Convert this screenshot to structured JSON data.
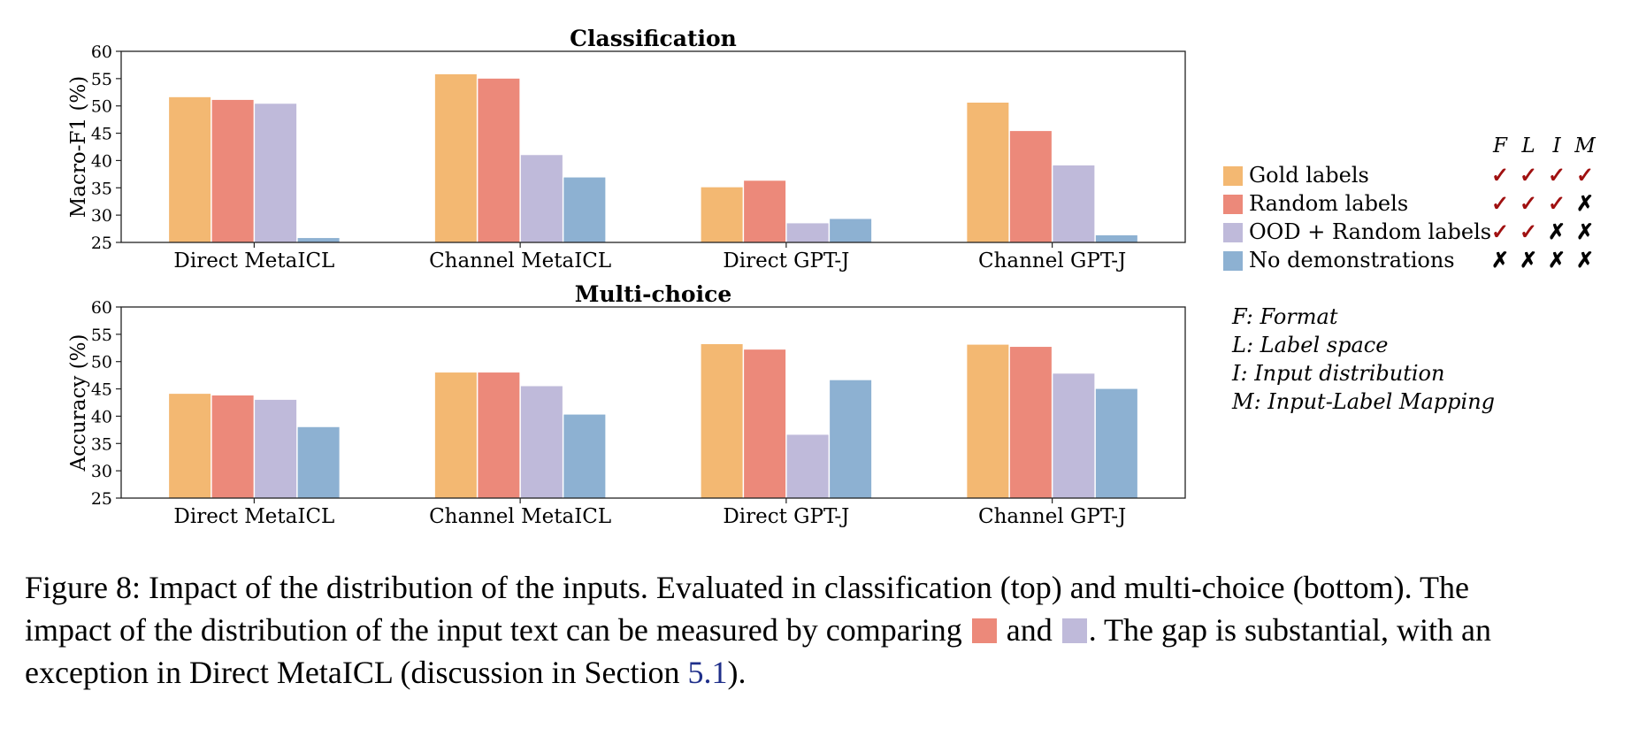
{
  "colors": {
    "gold": "#f3b872",
    "random": "#ec897a",
    "ood": "#bfbada",
    "none": "#8db1d2",
    "check": "#a01010",
    "link": "#1f2f8a"
  },
  "chart_data": [
    {
      "type": "bar",
      "title": "Classification",
      "ylabel": "Macro-F1 (%)",
      "ylim": [
        25,
        60
      ],
      "yticks": [
        "25",
        "30",
        "35",
        "40",
        "45",
        "50",
        "55",
        "60"
      ],
      "categories": [
        "Direct MetaICL",
        "Channel MetaICL",
        "Direct GPT-J",
        "Channel GPT-J"
      ],
      "series": [
        {
          "name": "Gold labels",
          "values": [
            51.6,
            55.8,
            35.1,
            50.6
          ]
        },
        {
          "name": "Random labels",
          "values": [
            51.1,
            55.0,
            36.3,
            45.4
          ]
        },
        {
          "name": "OOD + Random labels",
          "values": [
            50.4,
            41.0,
            28.5,
            39.1
          ]
        },
        {
          "name": "No demonstrations",
          "values": [
            25.8,
            36.9,
            29.3,
            26.3
          ]
        }
      ]
    },
    {
      "type": "bar",
      "title": "Multi-choice",
      "ylabel": "Accuracy (%)",
      "ylim": [
        25,
        60
      ],
      "yticks": [
        "25",
        "30",
        "35",
        "40",
        "45",
        "50",
        "55",
        "60"
      ],
      "categories": [
        "Direct MetaICL",
        "Channel MetaICL",
        "Direct GPT-J",
        "Channel GPT-J"
      ],
      "series": [
        {
          "name": "Gold labels",
          "values": [
            44.1,
            48.0,
            53.2,
            53.1
          ]
        },
        {
          "name": "Random labels",
          "values": [
            43.8,
            48.0,
            52.2,
            52.7
          ]
        },
        {
          "name": "OOD + Random labels",
          "values": [
            43.0,
            45.5,
            36.6,
            47.8
          ]
        },
        {
          "name": "No demonstrations",
          "values": [
            38.0,
            40.3,
            46.6,
            45.0
          ]
        }
      ]
    }
  ],
  "legend": {
    "flag_headers": [
      "F",
      "L",
      "I",
      "M"
    ],
    "items": [
      {
        "label": "Gold labels",
        "flags": [
          "✓",
          "✓",
          "✓",
          "✓"
        ]
      },
      {
        "label": "Random labels",
        "flags": [
          "✓",
          "✓",
          "✓",
          "✗"
        ]
      },
      {
        "label": "OOD + Random labels",
        "flags": [
          "✓",
          "✓",
          "✗",
          "✗"
        ]
      },
      {
        "label": "No demonstrations",
        "flags": [
          "✗",
          "✗",
          "✗",
          "✗"
        ]
      }
    ],
    "definitions": [
      "F: Format",
      "L: Label space",
      "I: Input distribution",
      "M: Input-Label Mapping"
    ]
  },
  "caption": {
    "line1": "Figure 8: Impact of the distribution of the inputs. Evaluated in classification (top) and multi-choice (bottom). The",
    "line2_a": "impact of the distribution of the input text can be measured by comparing",
    "line2_b": "and",
    "line2_c": ". The gap is substantial, with an",
    "line3_a": "exception in Direct MetaICL (discussion in Section ",
    "line3_link": "5.1",
    "line3_b": ")."
  }
}
